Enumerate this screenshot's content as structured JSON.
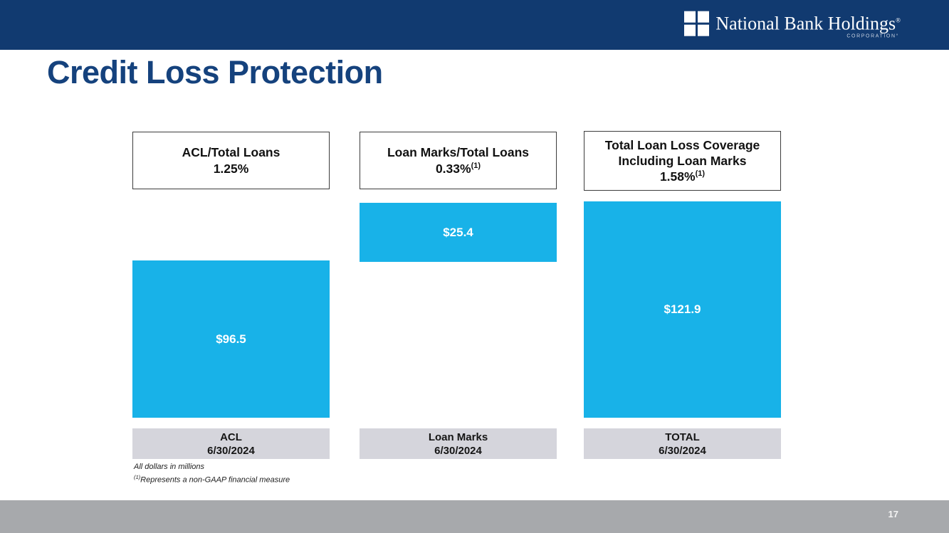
{
  "logo": {
    "name": "National Bank Holdings",
    "reg": "®",
    "subtitle": "CORPORATION°"
  },
  "title": "Credit Loss Protection",
  "columns": [
    {
      "header_line1": "ACL/Total Loans",
      "header_line2": "",
      "value_pct": "1.25%",
      "value_sup": "",
      "bar_label": "$96.5",
      "cat_line1": "ACL",
      "cat_line2": "6/30/2024"
    },
    {
      "header_line1": "Loan Marks/Total Loans",
      "header_line2": "",
      "value_pct": "0.33%",
      "value_sup": "(1)",
      "bar_label": "$25.4",
      "cat_line1": "Loan Marks",
      "cat_line2": "6/30/2024"
    },
    {
      "header_line1": "Total Loan Loss Coverage",
      "header_line2": "Including Loan Marks",
      "value_pct": "1.58%",
      "value_sup": "(1)",
      "bar_label": "$121.9",
      "cat_line1": "TOTAL",
      "cat_line2": "6/30/2024"
    }
  ],
  "footnotes": {
    "line1": "All dollars in millions",
    "line2_sup": "(1)",
    "line2": "Represents a non-GAAP financial measure"
  },
  "page_number": "17",
  "colors": {
    "navy_band": "#113a70",
    "title_navy": "#15427d",
    "bar_cyan": "#18b2e8",
    "label_gray": "#d5d5dc",
    "footer_gray": "#a7a9ac"
  },
  "chart_data": {
    "type": "bar",
    "title": "Credit Loss Protection",
    "categories": [
      "ACL 6/30/2024",
      "Loan Marks 6/30/2024",
      "TOTAL 6/30/2024"
    ],
    "values": [
      96.5,
      25.4,
      121.9
    ],
    "value_labels": [
      "$96.5",
      "$25.4",
      "$121.9"
    ],
    "units": "USD millions",
    "ratio_annotations": [
      "ACL/Total Loans 1.25%",
      "Loan Marks/Total Loans 0.33%(1)",
      "Total Loan Loss Coverage Including Loan Marks 1.58%(1)"
    ],
    "notes": [
      "All dollars in millions",
      "(1) Represents a non-GAAP financial measure"
    ],
    "layout_hint": "Loan Marks bar floats at top so ACL + Loan Marks visually stack to equal TOTAL; no axes or gridlines; data labels inside bars",
    "bar_color": "#18b2e8"
  }
}
